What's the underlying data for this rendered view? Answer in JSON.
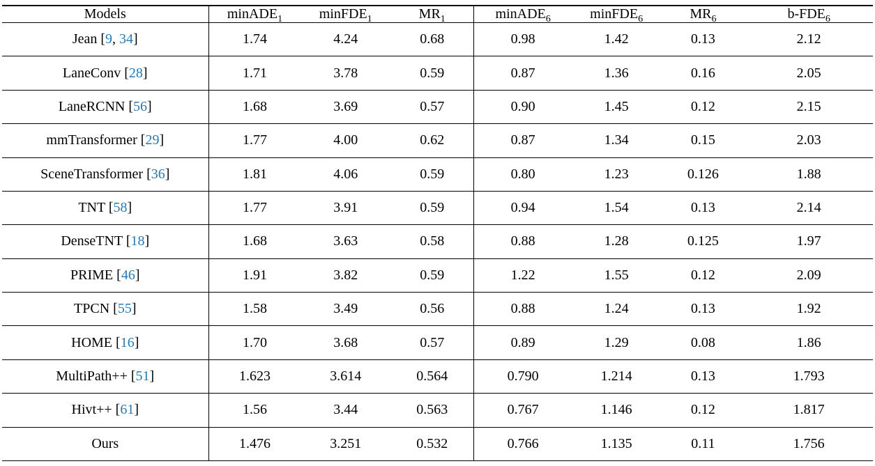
{
  "table": {
    "citation_color": "#2579b5",
    "columns": [
      {
        "label": "Models",
        "sub": ""
      },
      {
        "label": "minADE",
        "sub": "1"
      },
      {
        "label": "minFDE",
        "sub": "1"
      },
      {
        "label": "MR",
        "sub": "1"
      },
      {
        "label": "minADE",
        "sub": "6"
      },
      {
        "label": "minFDE",
        "sub": "6"
      },
      {
        "label": "MR",
        "sub": "6"
      },
      {
        "label": "b-FDE",
        "sub": "6"
      }
    ],
    "rows": [
      {
        "model": {
          "name": "Jean",
          "citations": [
            "9",
            "34"
          ]
        },
        "values": [
          "1.74",
          "4.24",
          "0.68",
          "0.98",
          "1.42",
          "0.13",
          "2.12"
        ],
        "bold": []
      },
      {
        "model": {
          "name": "LaneConv",
          "citations": [
            "28"
          ]
        },
        "values": [
          "1.71",
          "3.78",
          "0.59",
          "0.87",
          "1.36",
          "0.16",
          "2.05"
        ],
        "bold": []
      },
      {
        "model": {
          "name": "LaneRCNN",
          "citations": [
            "56"
          ]
        },
        "values": [
          "1.68",
          "3.69",
          "0.57",
          "0.90",
          "1.45",
          "0.12",
          "2.15"
        ],
        "bold": []
      },
      {
        "model": {
          "name": "mmTransformer",
          "citations": [
            "29"
          ]
        },
        "values": [
          "1.77",
          "4.00",
          "0.62",
          "0.87",
          "1.34",
          "0.15",
          "2.03"
        ],
        "bold": []
      },
      {
        "model": {
          "name": "SceneTransformer",
          "citations": [
            "36"
          ]
        },
        "values": [
          "1.81",
          "4.06",
          "0.59",
          "0.80",
          "1.23",
          "0.126",
          "1.88"
        ],
        "bold": []
      },
      {
        "model": {
          "name": "TNT",
          "citations": [
            "58"
          ]
        },
        "values": [
          "1.77",
          "3.91",
          "0.59",
          "0.94",
          "1.54",
          "0.13",
          "2.14"
        ],
        "bold": []
      },
      {
        "model": {
          "name": "DenseTNT",
          "citations": [
            "18"
          ]
        },
        "values": [
          "1.68",
          "3.63",
          "0.58",
          "0.88",
          "1.28",
          "0.125",
          "1.97"
        ],
        "bold": []
      },
      {
        "model": {
          "name": "PRIME",
          "citations": [
            "46"
          ]
        },
        "values": [
          "1.91",
          "3.82",
          "0.59",
          "1.22",
          "1.55",
          "0.12",
          "2.09"
        ],
        "bold": []
      },
      {
        "model": {
          "name": "TPCN",
          "citations": [
            "55"
          ]
        },
        "values": [
          "1.58",
          "3.49",
          "0.56",
          "0.88",
          "1.24",
          "0.13",
          "1.92"
        ],
        "bold": []
      },
      {
        "model": {
          "name": "HOME",
          "citations": [
            "16"
          ]
        },
        "values": [
          "1.70",
          "3.68",
          "0.57",
          "0.89",
          "1.29",
          "0.08",
          "1.86"
        ],
        "bold": [
          5
        ]
      },
      {
        "model": {
          "name": "MultiPath++",
          "citations": [
            "51"
          ]
        },
        "values": [
          "1.623",
          "3.614",
          "0.564",
          "0.790",
          "1.214",
          "0.13",
          "1.793"
        ],
        "bold": []
      },
      {
        "model": {
          "name": "Hivt++",
          "citations": [
            "61"
          ]
        },
        "values": [
          "1.56",
          "3.44",
          "0.563",
          "0.767",
          "1.146",
          "0.12",
          "1.817"
        ],
        "bold": []
      },
      {
        "model": {
          "name": "Ours",
          "citations": []
        },
        "values": [
          "1.476",
          "3.251",
          "0.532",
          "0.766",
          "1.135",
          "0.11",
          "1.756"
        ],
        "bold": [
          0,
          1,
          2,
          3,
          4,
          6
        ]
      }
    ]
  }
}
